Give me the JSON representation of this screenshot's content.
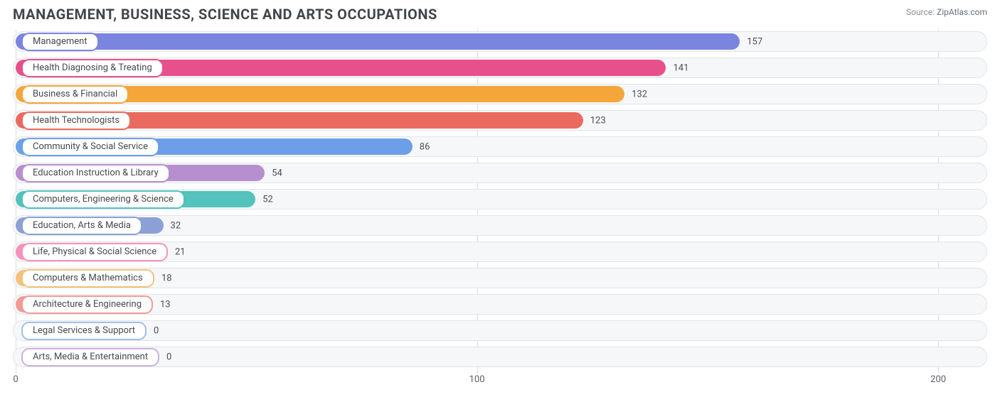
{
  "header": {
    "title": "MANAGEMENT, BUSINESS, SCIENCE AND ARTS OCCUPATIONS",
    "source_label": "Source:",
    "source_value": "ZipAtlas.com"
  },
  "chart": {
    "type": "bar",
    "orientation": "horizontal",
    "x_min": 0,
    "x_max": 210,
    "x_ticks": [
      0,
      100,
      200
    ],
    "background_color": "#ffffff",
    "track_fill": "#f6f7f8",
    "track_border": "#e1e4e8",
    "grid_color": "#d8dde3",
    "pill_bg": "#ffffff",
    "label_fontsize": 13,
    "title_fontsize": 20,
    "title_color": "#41464b",
    "value_color": "#4b4f55",
    "bars": [
      {
        "label": "Management",
        "value": 157,
        "color": "#7a85e0"
      },
      {
        "label": "Health Diagnosing & Treating",
        "value": 141,
        "color": "#e8508b"
      },
      {
        "label": "Business & Financial",
        "value": 132,
        "color": "#f5a63b"
      },
      {
        "label": "Health Technologists",
        "value": 123,
        "color": "#ea6a5f"
      },
      {
        "label": "Community & Social Service",
        "value": 86,
        "color": "#6c9fe8"
      },
      {
        "label": "Education Instruction & Library",
        "value": 54,
        "color": "#b78fce"
      },
      {
        "label": "Computers, Engineering & Science",
        "value": 52,
        "color": "#53c3bc"
      },
      {
        "label": "Education, Arts & Media",
        "value": 32,
        "color": "#8ba0d6"
      },
      {
        "label": "Life, Physical & Social Science",
        "value": 21,
        "color": "#f593bb"
      },
      {
        "label": "Computers & Mathematics",
        "value": 18,
        "color": "#f4c27b"
      },
      {
        "label": "Architecture & Engineering",
        "value": 13,
        "color": "#f19b94"
      },
      {
        "label": "Legal Services & Support",
        "value": 0,
        "color": "#9ec0ed"
      },
      {
        "label": "Arts, Media & Entertainment",
        "value": 0,
        "color": "#ccb3dc"
      }
    ]
  }
}
